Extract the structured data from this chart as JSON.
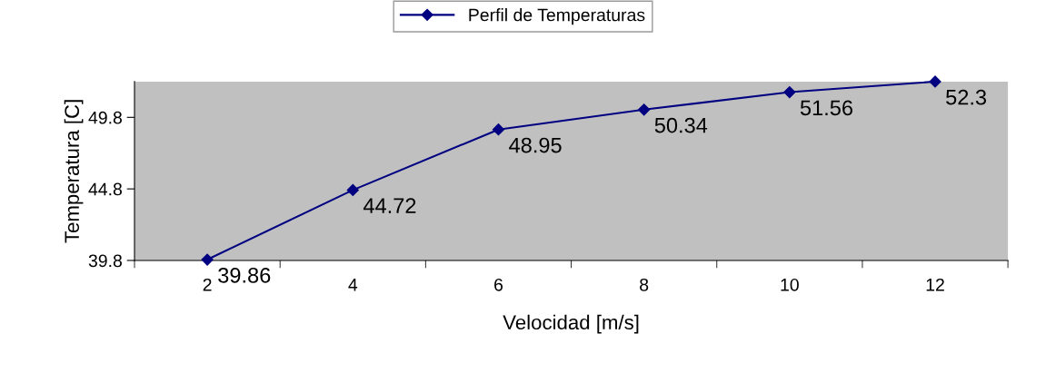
{
  "chart_data": {
    "type": "line",
    "xlabel": "Velocidad [m/s]",
    "ylabel": "Temperatura [C]",
    "categories": [
      "2",
      "4",
      "6",
      "8",
      "10",
      "12"
    ],
    "series": [
      {
        "name": "Perfil de Temperaturas",
        "color": "#000080",
        "values": [
          39.86,
          44.72,
          48.95,
          50.34,
          51.56,
          52.3
        ]
      }
    ],
    "ylim": [
      39.8,
      52.3
    ],
    "yticks": [
      39.8,
      44.8,
      49.8
    ],
    "data_labels": true,
    "grid": false,
    "legend": "top",
    "marker": "diamond",
    "line_style": "solid"
  }
}
